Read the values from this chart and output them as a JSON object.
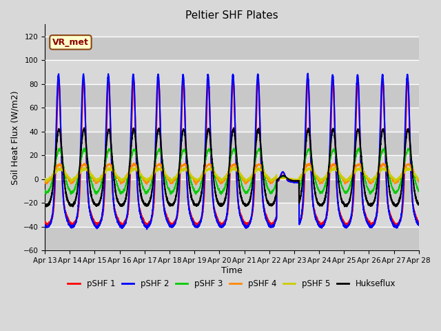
{
  "title": "Peltier SHF Plates",
  "xlabel": "Time",
  "ylabel": "Soil Heat Flux (W/m2)",
  "ylim": [
    -60,
    130
  ],
  "yticks": [
    -60,
    -40,
    -20,
    0,
    20,
    40,
    60,
    80,
    100,
    120
  ],
  "xlim": [
    0,
    15
  ],
  "xtick_labels": [
    "Apr 13",
    "Apr 14",
    "Apr 15",
    "Apr 16",
    "Apr 17",
    "Apr 18",
    "Apr 19",
    "Apr 20",
    "Apr 21",
    "Apr 22",
    "Apr 23",
    "Apr 24",
    "Apr 25",
    "Apr 26",
    "Apr 27",
    "Apr 28"
  ],
  "series_colors": [
    "#ff0000",
    "#0000ff",
    "#00cc00",
    "#ff8800",
    "#cccc00",
    "#000000"
  ],
  "series_names": [
    "pSHF 1",
    "pSHF 2",
    "pSHF 3",
    "pSHF 4",
    "pSHF 5",
    "Hukseflux"
  ],
  "annotation_text": "VR_met",
  "fig_bg": "#d8d8d8",
  "plot_bg": "#d8d8d8",
  "n_days": 15,
  "pts_per_day": 288,
  "peak_heights": [
    100,
    105,
    32,
    15,
    10,
    54
  ],
  "trough_depths": [
    -38,
    -40,
    -12,
    -4,
    -2,
    -22
  ],
  "peak_widths": [
    0.08,
    0.09,
    0.18,
    0.22,
    0.24,
    0.14
  ],
  "trough_widths": [
    0.35,
    0.35,
    0.45,
    0.5,
    0.52,
    0.42
  ],
  "cloudy_day_start": 9.3,
  "cloudy_day_end": 10.2,
  "cloudy_factor": 0.07
}
